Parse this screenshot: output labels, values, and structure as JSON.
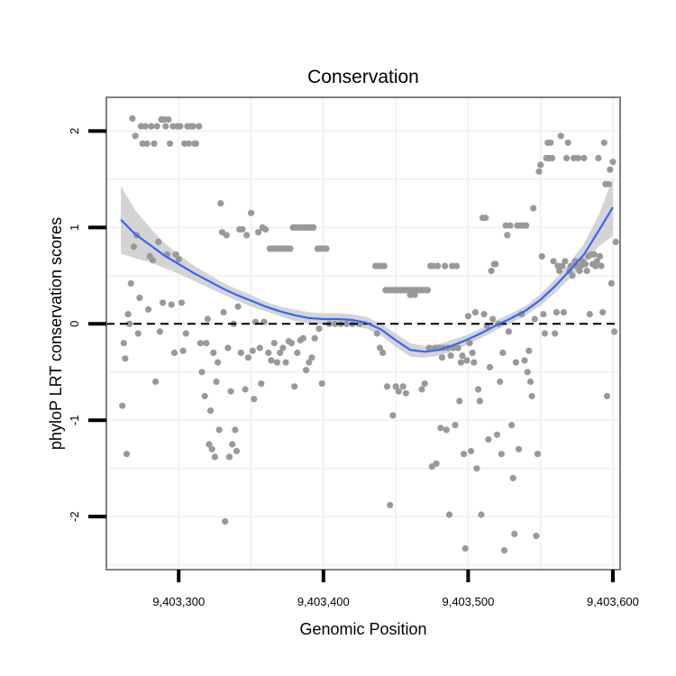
{
  "chart_data": {
    "type": "scatter",
    "title": "Conservation",
    "xlabel": "Genomic Position",
    "ylabel": "phyloP LRT conservation scores",
    "xlim": [
      9403250,
      9403605
    ],
    "ylim": [
      -2.55,
      2.35
    ],
    "x_ticks": [
      9403300,
      9403400,
      9403500,
      9403600
    ],
    "x_tick_labels": [
      "9,403,300",
      "9,403,400",
      "9,403,500",
      "9,403,600"
    ],
    "y_ticks": [
      -2,
      -1,
      0,
      1,
      2
    ],
    "y_tick_labels": [
      "-2",
      "-1",
      "0",
      "1",
      "2"
    ],
    "grid": true,
    "reference_line_y": 0,
    "colors": {
      "points": "#999999",
      "smooth": "#3366ff",
      "band": "#cccccc",
      "refline": "#000000",
      "frame": "#808080"
    },
    "points": [
      [
        9403261,
        -0.85
      ],
      [
        9403262,
        -0.2
      ],
      [
        9403263,
        -0.36
      ],
      [
        9403264,
        -1.35
      ],
      [
        9403265,
        0.1
      ],
      [
        9403266,
        0.0
      ],
      [
        9403267,
        0.42
      ],
      [
        9403268,
        2.13
      ],
      [
        9403269,
        0.8
      ],
      [
        9403270,
        1.95
      ],
      [
        9403271,
        0.92
      ],
      [
        9403272,
        -0.1
      ],
      [
        9403273,
        0.27
      ],
      [
        9403274,
        2.05
      ],
      [
        9403275,
        1.87
      ],
      [
        9403277,
        2.05
      ],
      [
        9403278,
        1.87
      ],
      [
        9403279,
        0.15
      ],
      [
        9403280,
        0.7
      ],
      [
        9403281,
        2.05
      ],
      [
        9403282,
        0.66
      ],
      [
        9403283,
        1.87
      ],
      [
        9403284,
        -0.6
      ],
      [
        9403285,
        2.05
      ],
      [
        9403286,
        0.85
      ],
      [
        9403287,
        -0.08
      ],
      [
        9403288,
        2.12
      ],
      [
        9403289,
        0.22
      ],
      [
        9403290,
        2.12
      ],
      [
        9403291,
        2.05
      ],
      [
        9403292,
        0.72
      ],
      [
        9403293,
        2.12
      ],
      [
        9403294,
        1.87
      ],
      [
        9403295,
        0.2
      ],
      [
        9403296,
        2.05
      ],
      [
        9403297,
        -0.3
      ],
      [
        9403298,
        0.72
      ],
      [
        9403299,
        2.05
      ],
      [
        9403300,
        0.67
      ],
      [
        9403301,
        2.05
      ],
      [
        9403302,
        0.22
      ],
      [
        9403303,
        -0.28
      ],
      [
        9403304,
        1.87
      ],
      [
        9403305,
        -0.1
      ],
      [
        9403306,
        2.05
      ],
      [
        9403307,
        1.87
      ],
      [
        9403308,
        2.05
      ],
      [
        9403310,
        2.05
      ],
      [
        9403311,
        1.87
      ],
      [
        9403312,
        1.87
      ],
      [
        9403314,
        2.05
      ],
      [
        9403315,
        -0.2
      ],
      [
        9403316,
        -0.5
      ],
      [
        9403318,
        -0.75
      ],
      [
        9403319,
        -0.2
      ],
      [
        9403320,
        0.05
      ],
      [
        9403321,
        -1.25
      ],
      [
        9403322,
        -0.9
      ],
      [
        9403323,
        -1.3
      ],
      [
        9403324,
        -0.3
      ],
      [
        9403325,
        -1.38
      ],
      [
        9403326,
        -0.6
      ],
      [
        9403327,
        -0.4
      ],
      [
        9403328,
        -1.1
      ],
      [
        9403329,
        1.25
      ],
      [
        9403330,
        0.95
      ],
      [
        9403331,
        0.12
      ],
      [
        9403332,
        -2.05
      ],
      [
        9403333,
        0.92
      ],
      [
        9403334,
        -0.25
      ],
      [
        9403335,
        -1.38
      ],
      [
        9403336,
        -0.7
      ],
      [
        9403337,
        -1.25
      ],
      [
        9403338,
        0.0
      ],
      [
        9403339,
        -1.1
      ],
      [
        9403340,
        -1.32
      ],
      [
        9403341,
        0.18
      ],
      [
        9403342,
        0.98
      ],
      [
        9403343,
        -0.3
      ],
      [
        9403344,
        0.98
      ],
      [
        9403346,
        -0.68
      ],
      [
        9403347,
        0.92
      ],
      [
        9403348,
        -0.35
      ],
      [
        9403350,
        1.15
      ],
      [
        9403351,
        -0.28
      ],
      [
        9403352,
        -0.78
      ],
      [
        9403353,
        0.02
      ],
      [
        9403355,
        0.95
      ],
      [
        9403356,
        -0.25
      ],
      [
        9403357,
        -0.62
      ],
      [
        9403358,
        1.0
      ],
      [
        9403359,
        0.02
      ],
      [
        9403360,
        0.98
      ],
      [
        9403362,
        -0.3
      ],
      [
        9403363,
        0.78
      ],
      [
        9403364,
        -0.38
      ],
      [
        9403365,
        0.78
      ],
      [
        9403366,
        -0.2
      ],
      [
        9403367,
        0.78
      ],
      [
        9403368,
        -0.4
      ],
      [
        9403369,
        0.78
      ],
      [
        9403370,
        -0.3
      ],
      [
        9403371,
        0.78
      ],
      [
        9403372,
        -0.25
      ],
      [
        9403373,
        0.78
      ],
      [
        9403374,
        -0.4
      ],
      [
        9403375,
        0.78
      ],
      [
        9403376,
        -0.18
      ],
      [
        9403377,
        0.78
      ],
      [
        9403378,
        -0.2
      ],
      [
        9403379,
        1.0
      ],
      [
        9403380,
        -0.65
      ],
      [
        9403381,
        1.0
      ],
      [
        9403382,
        -0.3
      ],
      [
        9403383,
        1.0
      ],
      [
        9403384,
        -0.17
      ],
      [
        9403385,
        1.0
      ],
      [
        9403386,
        -0.15
      ],
      [
        9403387,
        1.0
      ],
      [
        9403388,
        -0.48
      ],
      [
        9403389,
        1.0
      ],
      [
        9403390,
        -0.4
      ],
      [
        9403391,
        1.0
      ],
      [
        9403392,
        -0.35
      ],
      [
        9403393,
        1.0
      ],
      [
        9403394,
        -0.15
      ],
      [
        9403396,
        0.78
      ],
      [
        9403397,
        -0.05
      ],
      [
        9403398,
        0.78
      ],
      [
        9403399,
        -0.62
      ],
      [
        9403400,
        0.78
      ],
      [
        9403402,
        0.78
      ],
      [
        9403404,
        0.0
      ],
      [
        9403408,
        0.0
      ],
      [
        9403412,
        0.0
      ],
      [
        9403416,
        0.0
      ],
      [
        9403420,
        0.0
      ],
      [
        9403425,
        0.0
      ],
      [
        9403436,
        0.6
      ],
      [
        9403437,
        -0.1
      ],
      [
        9403438,
        0.6
      ],
      [
        9403439,
        -0.25
      ],
      [
        9403440,
        0.6
      ],
      [
        9403441,
        -0.3
      ],
      [
        9403442,
        0.6
      ],
      [
        9403443,
        0.35
      ],
      [
        9403444,
        -0.65
      ],
      [
        9403445,
        0.35
      ],
      [
        9403446,
        -1.88
      ],
      [
        9403447,
        0.35
      ],
      [
        9403448,
        -0.95
      ],
      [
        9403449,
        0.35
      ],
      [
        9403450,
        -0.65
      ],
      [
        9403451,
        0.35
      ],
      [
        9403452,
        -0.7
      ],
      [
        9403453,
        0.35
      ],
      [
        9403454,
        0.35
      ],
      [
        9403455,
        -0.65
      ],
      [
        9403456,
        0.35
      ],
      [
        9403457,
        -0.72
      ],
      [
        9403458,
        0.35
      ],
      [
        9403459,
        0.35
      ],
      [
        9403460,
        0.3
      ],
      [
        9403461,
        0.35
      ],
      [
        9403462,
        0.35
      ],
      [
        9403463,
        0.3
      ],
      [
        9403464,
        0.35
      ],
      [
        9403465,
        0.35
      ],
      [
        9403466,
        0.35
      ],
      [
        9403467,
        0.35
      ],
      [
        9403468,
        -0.68
      ],
      [
        9403469,
        0.35
      ],
      [
        9403470,
        -0.62
      ],
      [
        9403471,
        0.35
      ],
      [
        9403472,
        0.35
      ],
      [
        9403473,
        -0.25
      ],
      [
        9403474,
        0.6
      ],
      [
        9403475,
        -1.48
      ],
      [
        9403476,
        0.6
      ],
      [
        9403477,
        -0.25
      ],
      [
        9403478,
        -1.45
      ],
      [
        9403479,
        0.6
      ],
      [
        9403480,
        -0.25
      ],
      [
        9403481,
        -1.08
      ],
      [
        9403482,
        -0.35
      ],
      [
        9403483,
        -0.25
      ],
      [
        9403484,
        0.6
      ],
      [
        9403485,
        -1.1
      ],
      [
        9403486,
        -0.25
      ],
      [
        9403487,
        -1.98
      ],
      [
        9403488,
        -0.33
      ],
      [
        9403489,
        0.6
      ],
      [
        9403490,
        -0.25
      ],
      [
        9403491,
        -1.05
      ],
      [
        9403492,
        0.6
      ],
      [
        9403493,
        -0.25
      ],
      [
        9403494,
        -0.8
      ],
      [
        9403495,
        -0.4
      ],
      [
        9403496,
        -0.33
      ],
      [
        9403497,
        -1.35
      ],
      [
        9403498,
        -2.33
      ],
      [
        9403499,
        -0.38
      ],
      [
        9403500,
        0.08
      ],
      [
        9403501,
        -0.2
      ],
      [
        9403502,
        -1.32
      ],
      [
        9403503,
        -0.3
      ],
      [
        9403504,
        -0.4
      ],
      [
        9403505,
        0.12
      ],
      [
        9403506,
        -1.5
      ],
      [
        9403507,
        -0.68
      ],
      [
        9403508,
        -0.8
      ],
      [
        9403509,
        -1.98
      ],
      [
        9403510,
        1.1
      ],
      [
        9403511,
        0.1
      ],
      [
        9403512,
        1.1
      ],
      [
        9403513,
        -0.02
      ],
      [
        9403514,
        -1.2
      ],
      [
        9403515,
        -0.45
      ],
      [
        9403516,
        0.55
      ],
      [
        9403517,
        0.05
      ],
      [
        9403518,
        0.62
      ],
      [
        9403519,
        0.62
      ],
      [
        9403520,
        -1.15
      ],
      [
        9403521,
        0.0
      ],
      [
        9403522,
        -0.6
      ],
      [
        9403523,
        -1.35
      ],
      [
        9403524,
        -0.3
      ],
      [
        9403525,
        -2.35
      ],
      [
        9403526,
        1.02
      ],
      [
        9403527,
        0.92
      ],
      [
        9403528,
        -0.08
      ],
      [
        9403529,
        1.02
      ],
      [
        9403530,
        -1.05
      ],
      [
        9403531,
        -1.6
      ],
      [
        9403532,
        -2.18
      ],
      [
        9403533,
        -0.4
      ],
      [
        9403534,
        1.02
      ],
      [
        9403535,
        -1.3
      ],
      [
        9403536,
        1.02
      ],
      [
        9403537,
        0.1
      ],
      [
        9403538,
        1.02
      ],
      [
        9403539,
        -0.38
      ],
      [
        9403540,
        1.02
      ],
      [
        9403541,
        -0.5
      ],
      [
        9403542,
        -0.28
      ],
      [
        9403543,
        -0.6
      ],
      [
        9403544,
        -0.75
      ],
      [
        9403545,
        1.2
      ],
      [
        9403546,
        0.05
      ],
      [
        9403547,
        -2.2
      ],
      [
        9403548,
        -1.35
      ],
      [
        9403549,
        1.58
      ],
      [
        9403550,
        1.65
      ],
      [
        9403551,
        0.7
      ],
      [
        9403552,
        0.1
      ],
      [
        9403553,
        -0.1
      ],
      [
        9403554,
        1.72
      ],
      [
        9403555,
        1.88
      ],
      [
        9403556,
        1.72
      ],
      [
        9403557,
        1.88
      ],
      [
        9403558,
        1.72
      ],
      [
        9403559,
        0.65
      ],
      [
        9403560,
        -0.1
      ],
      [
        9403561,
        0.12
      ],
      [
        9403562,
        0.6
      ],
      [
        9403563,
        0.55
      ],
      [
        9403564,
        1.95
      ],
      [
        9403565,
        0.6
      ],
      [
        9403566,
        0.12
      ],
      [
        9403567,
        0.65
      ],
      [
        9403568,
        1.72
      ],
      [
        9403569,
        1.88
      ],
      [
        9403570,
        0.55
      ],
      [
        9403571,
        0.6
      ],
      [
        9403572,
        0.5
      ],
      [
        9403573,
        1.72
      ],
      [
        9403574,
        0.65
      ],
      [
        9403575,
        0.6
      ],
      [
        9403576,
        1.72
      ],
      [
        9403577,
        0.55
      ],
      [
        9403578,
        0.6
      ],
      [
        9403579,
        0.65
      ],
      [
        9403580,
        1.72
      ],
      [
        9403581,
        0.62
      ],
      [
        9403582,
        0.55
      ],
      [
        9403583,
        0.7
      ],
      [
        9403584,
        0.1
      ],
      [
        9403585,
        0.72
      ],
      [
        9403586,
        0.62
      ],
      [
        9403587,
        0.72
      ],
      [
        9403588,
        0.6
      ],
      [
        9403589,
        0.65
      ],
      [
        9403590,
        1.72
      ],
      [
        9403591,
        0.7
      ],
      [
        9403592,
        0.6
      ],
      [
        9403593,
        0.12
      ],
      [
        9403594,
        1.88
      ],
      [
        9403595,
        1.45
      ],
      [
        9403596,
        -0.75
      ],
      [
        9403597,
        1.45
      ],
      [
        9403598,
        1.6
      ],
      [
        9403599,
        0.42
      ],
      [
        9403600,
        1.68
      ],
      [
        9403601,
        -0.08
      ],
      [
        9403602,
        0.85
      ]
    ],
    "smooth": {
      "x": [
        9403260,
        9403270,
        9403280,
        9403290,
        9403300,
        9403310,
        9403320,
        9403330,
        9403340,
        9403350,
        9403360,
        9403370,
        9403380,
        9403390,
        9403400,
        9403410,
        9403420,
        9403430,
        9403440,
        9403450,
        9403460,
        9403470,
        9403480,
        9403490,
        9403500,
        9403510,
        9403520,
        9403530,
        9403540,
        9403550,
        9403560,
        9403570,
        9403580,
        9403590,
        9403600
      ],
      "y": [
        1.08,
        0.93,
        0.82,
        0.71,
        0.62,
        0.53,
        0.45,
        0.37,
        0.3,
        0.24,
        0.18,
        0.13,
        0.09,
        0.06,
        0.05,
        0.05,
        0.04,
        0.01,
        -0.06,
        -0.17,
        -0.27,
        -0.29,
        -0.27,
        -0.22,
        -0.16,
        -0.09,
        -0.01,
        0.06,
        0.14,
        0.25,
        0.39,
        0.55,
        0.72,
        0.96,
        1.21
      ],
      "band": [
        0.35,
        0.25,
        0.18,
        0.13,
        0.1,
        0.08,
        0.07,
        0.06,
        0.06,
        0.06,
        0.05,
        0.05,
        0.06,
        0.06,
        0.06,
        0.06,
        0.06,
        0.06,
        0.06,
        0.07,
        0.07,
        0.06,
        0.06,
        0.06,
        0.05,
        0.05,
        0.05,
        0.05,
        0.05,
        0.06,
        0.07,
        0.08,
        0.11,
        0.16,
        0.3
      ]
    }
  }
}
